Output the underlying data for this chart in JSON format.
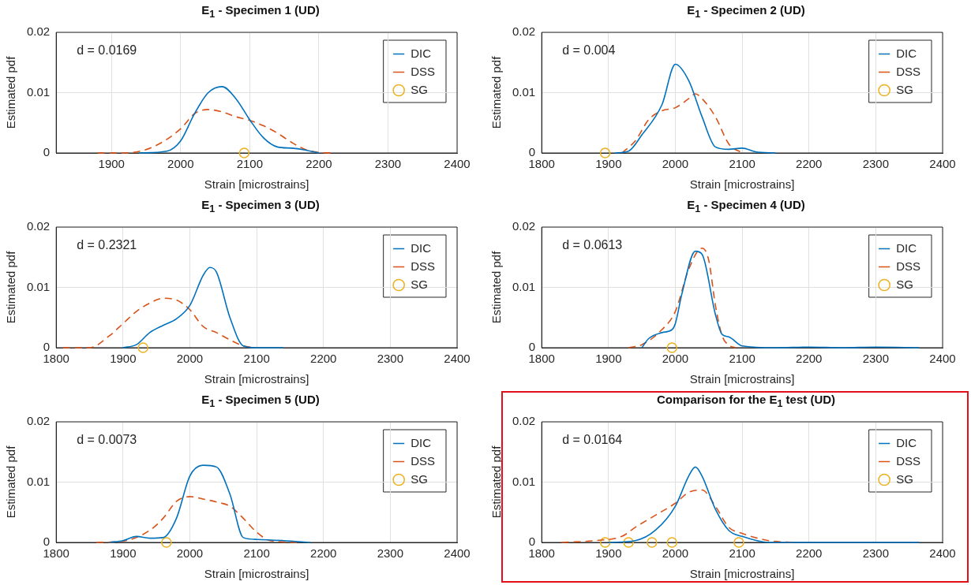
{
  "chart_data": [
    {
      "type": "line",
      "title": "E$_{1}$ - Specimen 1 (UD)",
      "xlabel": "Strain [microstrains]",
      "ylabel": "Estimated pdf",
      "annotations": [
        "d = 0.0169"
      ],
      "xlim": [
        1820,
        2400
      ],
      "xticks": [
        1900,
        2000,
        2100,
        2200,
        2300,
        2400
      ],
      "ylim": [
        0,
        0.02
      ],
      "yticks": [
        0,
        0.01,
        0.02
      ],
      "grid": true,
      "legend": "top right",
      "series": [
        {
          "name": "DIC",
          "color": "#0072bd",
          "line_style": "solid",
          "x": [
            1940,
            1980,
            2000,
            2020,
            2040,
            2060,
            2080,
            2100,
            2120,
            2140,
            2160,
            2180,
            2200
          ],
          "values": [
            0,
            0.0003,
            0.002,
            0.0065,
            0.01,
            0.011,
            0.009,
            0.0055,
            0.0025,
            0.001,
            0.0008,
            0.0005,
            0
          ]
        },
        {
          "name": "DSS",
          "color": "#d95319",
          "line_style": "dashed",
          "x": [
            1880,
            1920,
            1960,
            2000,
            2020,
            2040,
            2060,
            2080,
            2100,
            2120,
            2140,
            2160,
            2180,
            2200,
            2220
          ],
          "values": [
            0,
            0,
            0.001,
            0.004,
            0.0065,
            0.0072,
            0.0068,
            0.006,
            0.0054,
            0.0045,
            0.0033,
            0.0018,
            0.0006,
            0.0001,
            0
          ]
        },
        {
          "name": "SG",
          "type": "scatter",
          "marker": "circle",
          "color": "#edb120",
          "x": [
            2092
          ],
          "values": [
            0
          ]
        }
      ]
    },
    {
      "type": "line",
      "title": "E$_{1}$ - Specimen 2 (UD)",
      "xlabel": "Strain [microstrains]",
      "ylabel": "Estimated pdf",
      "annotations": [
        "d = 0.004"
      ],
      "xlim": [
        1800,
        2400
      ],
      "xticks": [
        1800,
        1900,
        2000,
        2100,
        2200,
        2300,
        2400
      ],
      "ylim": [
        0,
        0.02
      ],
      "yticks": [
        0,
        0.01,
        0.02
      ],
      "grid": true,
      "legend": "top right",
      "series": [
        {
          "name": "DIC",
          "color": "#0072bd",
          "line_style": "solid",
          "x": [
            1910,
            1930,
            1950,
            1980,
            2000,
            2020,
            2040,
            2060,
            2080,
            2100,
            2120,
            2150
          ],
          "values": [
            0,
            0.0003,
            0.003,
            0.008,
            0.0147,
            0.012,
            0.006,
            0.001,
            0.0006,
            0.0008,
            0.0002,
            0
          ]
        },
        {
          "name": "DSS",
          "color": "#d95319",
          "line_style": "dashed",
          "x": [
            1920,
            1940,
            1960,
            1980,
            2000,
            2020,
            2030,
            2040,
            2060,
            2080,
            2100
          ],
          "values": [
            0,
            0.002,
            0.0055,
            0.007,
            0.0075,
            0.009,
            0.0098,
            0.009,
            0.006,
            0.0015,
            0
          ]
        },
        {
          "name": "SG",
          "type": "scatter",
          "marker": "circle",
          "color": "#edb120",
          "x": [
            1895
          ],
          "values": [
            0
          ]
        }
      ]
    },
    {
      "type": "line",
      "title": "E$_{1}$ - Specimen 3 (UD)",
      "xlabel": "Strain [microstrains]",
      "ylabel": "Estimated pdf",
      "annotations": [
        "d = 0.2321"
      ],
      "xlim": [
        1800,
        2400
      ],
      "xticks": [
        1800,
        1900,
        2000,
        2100,
        2200,
        2300,
        2400
      ],
      "ylim": [
        0,
        0.02
      ],
      "yticks": [
        0,
        0.01,
        0.02
      ],
      "grid": true,
      "legend": "top right",
      "series": [
        {
          "name": "DIC",
          "color": "#0072bd",
          "line_style": "solid",
          "x": [
            1900,
            1920,
            1940,
            1960,
            1980,
            2000,
            2020,
            2030,
            2040,
            2060,
            2080,
            2100,
            2140
          ],
          "values": [
            0,
            0.0005,
            0.0025,
            0.0037,
            0.0048,
            0.007,
            0.012,
            0.0133,
            0.0125,
            0.005,
            0.0003,
            0,
            0
          ]
        },
        {
          "name": "DSS",
          "color": "#d95319",
          "line_style": "dashed",
          "x": [
            1810,
            1850,
            1880,
            1900,
            1920,
            1940,
            1960,
            1980,
            2000,
            2020,
            2040,
            2060,
            2080,
            2100
          ],
          "values": [
            0,
            0,
            0.002,
            0.004,
            0.006,
            0.0074,
            0.0082,
            0.0079,
            0.0063,
            0.0035,
            0.0025,
            0.0013,
            0.0003,
            0
          ]
        },
        {
          "name": "SG",
          "type": "scatter",
          "marker": "circle",
          "color": "#edb120",
          "x": [
            1930
          ],
          "values": [
            0
          ]
        }
      ]
    },
    {
      "type": "line",
      "title": "E$_{1}$ - Specimen 4 (UD)",
      "xlabel": "Strain [microstrains]",
      "ylabel": "Estimated pdf",
      "annotations": [
        "d = 0.0613"
      ],
      "xlim": [
        1800,
        2400
      ],
      "xticks": [
        1800,
        1900,
        2000,
        2100,
        2200,
        2300,
        2400
      ],
      "ylim": [
        0,
        0.02
      ],
      "yticks": [
        0,
        0.01,
        0.02
      ],
      "grid": true,
      "legend": "top right",
      "series": [
        {
          "name": "DIC",
          "color": "#0072bd",
          "line_style": "solid",
          "x": [
            1950,
            1960,
            1980,
            1995,
            2000,
            2010,
            2030,
            2040,
            2060,
            2070,
            2080,
            2100,
            2150,
            2200,
            2250,
            2300,
            2365
          ],
          "values": [
            0,
            0.0015,
            0.0025,
            0.003,
            0.004,
            0.009,
            0.016,
            0.0155,
            0.0055,
            0.0022,
            0.0018,
            0.0003,
            0,
            0.0001,
            0,
            0.0001,
            0
          ]
        },
        {
          "name": "DSS",
          "color": "#d95319",
          "line_style": "dashed",
          "x": [
            1930,
            1950,
            1980,
            2000,
            2020,
            2040,
            2050,
            2060,
            2070,
            2080,
            2090
          ],
          "values": [
            0,
            0.0005,
            0.003,
            0.006,
            0.013,
            0.0165,
            0.0145,
            0.007,
            0.002,
            0.0004,
            0
          ]
        },
        {
          "name": "SG",
          "type": "scatter",
          "marker": "circle",
          "color": "#edb120",
          "x": [
            1995
          ],
          "values": [
            0
          ]
        }
      ]
    },
    {
      "type": "line",
      "title": "E$_{1}$ - Specimen 5 (UD)",
      "xlabel": "Strain [microstrains]",
      "ylabel": "Estimated pdf",
      "annotations": [
        "d = 0.0073"
      ],
      "xlim": [
        1800,
        2400
      ],
      "xticks": [
        1800,
        1900,
        2000,
        2100,
        2200,
        2300,
        2400
      ],
      "ylim": [
        0,
        0.02
      ],
      "yticks": [
        0,
        0.01,
        0.02
      ],
      "grid": true,
      "legend": "top right",
      "series": [
        {
          "name": "DIC",
          "color": "#0072bd",
          "line_style": "solid",
          "x": [
            1880,
            1900,
            1920,
            1940,
            1960,
            1980,
            2000,
            2020,
            2040,
            2060,
            2080,
            2100,
            2140,
            2180
          ],
          "values": [
            0,
            0.0003,
            0.001,
            0.0007,
            0.0008,
            0.004,
            0.011,
            0.0128,
            0.0125,
            0.008,
            0.0008,
            0.0005,
            0.0003,
            0
          ]
        },
        {
          "name": "DSS",
          "color": "#d95319",
          "line_style": "dashed",
          "x": [
            1860,
            1900,
            1940,
            1960,
            1980,
            2000,
            2020,
            2040,
            2060,
            2080,
            2100,
            2120,
            2160
          ],
          "values": [
            0,
            0.0002,
            0.002,
            0.004,
            0.0068,
            0.0076,
            0.0072,
            0.0067,
            0.006,
            0.004,
            0.0017,
            0.0003,
            0
          ]
        },
        {
          "name": "SG",
          "type": "scatter",
          "marker": "circle",
          "color": "#edb120",
          "x": [
            1965
          ],
          "values": [
            0
          ]
        }
      ]
    },
    {
      "type": "line",
      "title": "Comparison for the E$_{1}$ test (UD)",
      "xlabel": "Strain [microstrains]",
      "ylabel": "Estimated pdf",
      "annotations": [
        "d = 0.0164"
      ],
      "xlim": [
        1800,
        2400
      ],
      "xticks": [
        1800,
        1900,
        2000,
        2100,
        2200,
        2300,
        2400
      ],
      "ylim": [
        0,
        0.02
      ],
      "yticks": [
        0,
        0.01,
        0.02
      ],
      "grid": true,
      "legend": "top right",
      "series": [
        {
          "name": "DIC",
          "color": "#0072bd",
          "line_style": "solid",
          "x": [
            1900,
            1940,
            1970,
            2000,
            2020,
            2030,
            2040,
            2060,
            2080,
            2100,
            2140,
            2200,
            2365
          ],
          "values": [
            0,
            0.0003,
            0.002,
            0.006,
            0.011,
            0.0125,
            0.011,
            0.0055,
            0.002,
            0.001,
            0,
            0,
            0
          ]
        },
        {
          "name": "DSS",
          "color": "#d95319",
          "line_style": "dashed",
          "x": [
            1830,
            1880,
            1920,
            1940,
            1970,
            2000,
            2020,
            2040,
            2060,
            2080,
            2100,
            2140,
            2180
          ],
          "values": [
            0,
            0.0003,
            0.001,
            0.0025,
            0.0045,
            0.0065,
            0.0083,
            0.0087,
            0.006,
            0.0025,
            0.0015,
            0.0003,
            0
          ]
        },
        {
          "name": "SG",
          "type": "scatter",
          "marker": "circle",
          "color": "#edb120",
          "x": [
            1895,
            1930,
            1965,
            1995,
            2095
          ],
          "values": [
            0,
            0,
            0,
            0,
            0
          ]
        }
      ]
    }
  ]
}
